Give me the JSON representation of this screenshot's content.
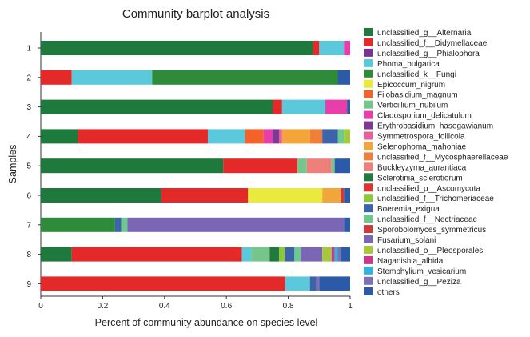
{
  "chart_data": {
    "type": "bar",
    "orientation": "horizontal",
    "stacked": true,
    "title": "Community barplot analysis",
    "xlabel": "Percent of community abundance on species level",
    "ylabel": "Samples",
    "xlim": [
      0,
      1
    ],
    "xticks": [
      "0",
      "0.2",
      "0.4",
      "0.6",
      "0.8",
      "1"
    ],
    "xtick_values": [
      0,
      0.2,
      0.4,
      0.6,
      0.8,
      1
    ],
    "legend_position": "right",
    "categories": [
      "1",
      "2",
      "3",
      "4",
      "5",
      "6",
      "7",
      "8",
      "9"
    ],
    "series": [
      {
        "name": "unclassified_g__Alternaria",
        "color": "#1e7a3c",
        "values": [
          0.88,
          0,
          0.75,
          0.12,
          0.59,
          0.39,
          0,
          0.1,
          0
        ]
      },
      {
        "name": "unclassified_f__Didymellaceae",
        "color": "#e42a28",
        "values": [
          0.02,
          0.1,
          0.03,
          0.42,
          0.24,
          0.28,
          0,
          0.55,
          0.79
        ]
      },
      {
        "name": "unclassified_g__Phialophora",
        "color": "#7b3294",
        "values": [
          0,
          0,
          0,
          0,
          0,
          0,
          0,
          0,
          0
        ]
      },
      {
        "name": "Phoma_bulgarica",
        "color": "#5bc8dc",
        "values": [
          0.08,
          0.26,
          0.14,
          0.12,
          0,
          0,
          0,
          0.03,
          0.08
        ]
      },
      {
        "name": "unclassified_k__Fungi",
        "color": "#2e8b3a",
        "values": [
          0,
          0.6,
          0,
          0,
          0,
          0,
          0.24,
          0,
          0
        ]
      },
      {
        "name": "Epicoccum_nigrum",
        "color": "#eaea3c",
        "values": [
          0,
          0,
          0,
          0,
          0,
          0.24,
          0,
          0,
          0
        ]
      },
      {
        "name": "Filobasidium_magnum",
        "color": "#f2622a",
        "values": [
          0,
          0,
          0,
          0.06,
          0,
          0,
          0,
          0,
          0
        ]
      },
      {
        "name": "Verticillium_nubilum",
        "color": "#74c68a",
        "values": [
          0,
          0,
          0,
          0,
          0.03,
          0,
          0,
          0.06,
          0
        ]
      },
      {
        "name": "Cladosporium_delicatulum",
        "color": "#e83eab",
        "values": [
          0.02,
          0,
          0.07,
          0.03,
          0,
          0,
          0,
          0,
          0
        ]
      },
      {
        "name": "Erythrobasidium_hasegawianum",
        "color": "#7a3a96",
        "values": [
          0,
          0,
          0,
          0.02,
          0,
          0,
          0,
          0,
          0
        ]
      },
      {
        "name": "Symmetrospora_foliicola",
        "color": "#e8609a",
        "values": [
          0,
          0,
          0,
          0.01,
          0,
          0,
          0,
          0,
          0
        ]
      },
      {
        "name": "Selenophoma_mahoniae",
        "color": "#f2a63a",
        "values": [
          0,
          0,
          0,
          0.09,
          0,
          0.06,
          0,
          0,
          0
        ]
      },
      {
        "name": "unclassified_f__Mycosphaerellaceae",
        "color": "#f07f3a",
        "values": [
          0,
          0,
          0,
          0.04,
          0,
          0,
          0,
          0,
          0
        ]
      },
      {
        "name": "Buckleyzyma_aurantiaca",
        "color": "#ef7f7a",
        "values": [
          0,
          0,
          0,
          0,
          0.08,
          0,
          0,
          0,
          0
        ]
      },
      {
        "name": "Sclerotinia_sclerotiorum",
        "color": "#1f7a3c",
        "values": [
          0,
          0,
          0,
          0,
          0,
          0,
          0,
          0.03,
          0
        ]
      },
      {
        "name": "unclassified_p__Ascomycota",
        "color": "#e0322e",
        "values": [
          0,
          0,
          0,
          0,
          0,
          0,
          0,
          0,
          0
        ]
      },
      {
        "name": "unclassified_f__Trichomeriaceae",
        "color": "#8dc63f",
        "values": [
          0,
          0,
          0,
          0,
          0,
          0,
          0,
          0.02,
          0
        ]
      },
      {
        "name": "Boeremia_exigua",
        "color": "#3b64ad",
        "values": [
          0,
          0,
          0,
          0.05,
          0,
          0,
          0.02,
          0.03,
          0.02
        ]
      },
      {
        "name": "unclassified_f__Nectriaceae",
        "color": "#6ec98e",
        "values": [
          0,
          0,
          0,
          0.02,
          0.01,
          0,
          0.02,
          0.02,
          0
        ]
      },
      {
        "name": "Sporobolomyces_symmetricus",
        "color": "#d03a37",
        "values": [
          0,
          0,
          0,
          0,
          0,
          0.01,
          0,
          0,
          0
        ]
      },
      {
        "name": "Fusarium_solani",
        "color": "#7a66b5",
        "values": [
          0,
          0,
          0,
          0,
          0,
          0,
          0.7,
          0.07,
          0
        ]
      },
      {
        "name": "unclassified_o__Pleosporales",
        "color": "#a6c93c",
        "values": [
          0,
          0,
          0,
          0.02,
          0,
          0,
          0,
          0.03,
          0
        ]
      },
      {
        "name": "Naganishia_albida",
        "color": "#c8388d",
        "values": [
          0,
          0,
          0,
          0,
          0,
          0,
          0,
          0.01,
          0
        ]
      },
      {
        "name": "Stemphylium_vesicarium",
        "color": "#2fb3e0",
        "values": [
          0,
          0,
          0,
          0,
          0,
          0,
          0,
          0.01,
          0
        ]
      },
      {
        "name": "unclassified_g__Peziza",
        "color": "#7d70b8",
        "values": [
          0,
          0,
          0,
          0,
          0,
          0,
          0,
          0.01,
          0.01
        ]
      },
      {
        "name": "others",
        "color": "#2a5aa8",
        "values": [
          0,
          0.04,
          0.01,
          0.03,
          0.05,
          0.02,
          0.02,
          0.05,
          0.1
        ]
      }
    ]
  }
}
